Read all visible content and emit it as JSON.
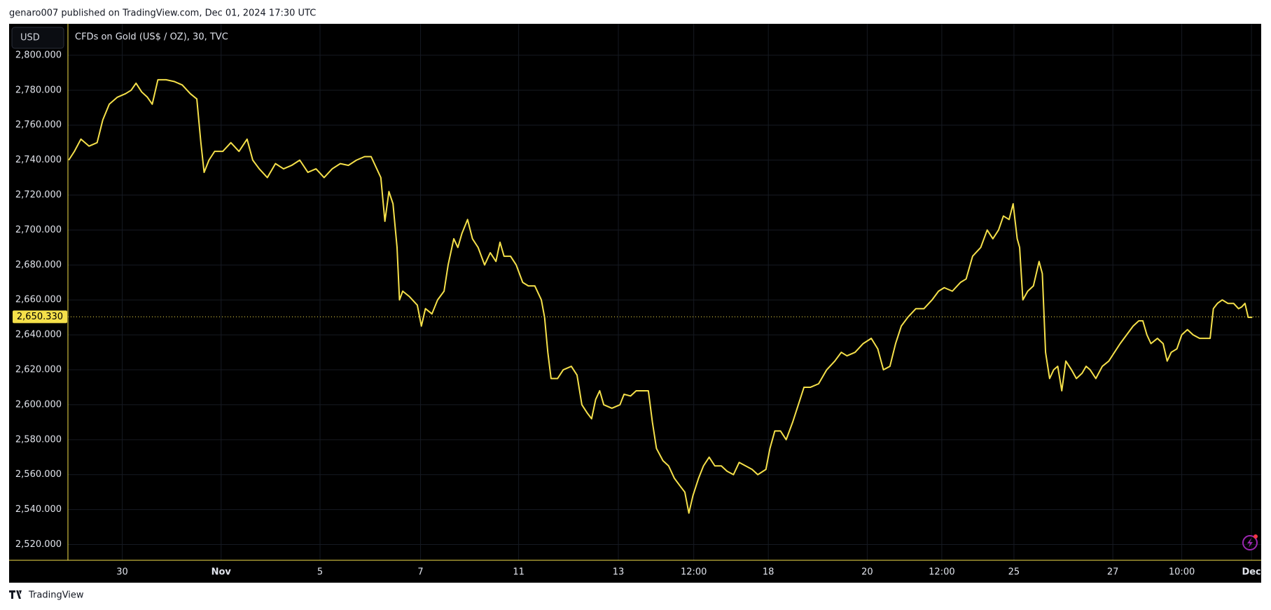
{
  "header": {
    "text": "genaro007 published on TradingView.com, Dec 01, 2024 17:30 UTC"
  },
  "toolbar": {
    "currency": "USD"
  },
  "footer": {
    "brand": "TradingView"
  },
  "chart_data": {
    "type": "line",
    "title": "CFDs on Gold (US$ / OZ), 30, TVC",
    "x": [
      1,
      8,
      16,
      26,
      36,
      43,
      51,
      61,
      71,
      78,
      84,
      91,
      98,
      104,
      111,
      121,
      131,
      141,
      151,
      159,
      164,
      168,
      174,
      181,
      191,
      201,
      211,
      221,
      228,
      236,
      246,
      256,
      266,
      276,
      286,
      296,
      306,
      316,
      326,
      336,
      346,
      356,
      366,
      374,
      381,
      386,
      391,
      396,
      401,
      406,
      409,
      413,
      421,
      431,
      436,
      441,
      449,
      456,
      464,
      469,
      476,
      481,
      486,
      493,
      499,
      506,
      514,
      521,
      528,
      533,
      538,
      546,
      553,
      561,
      568,
      576,
      584,
      588,
      592,
      596,
      604,
      611,
      621,
      628,
      634,
      641,
      646,
      651,
      656,
      661,
      671,
      681,
      686,
      694,
      701,
      708,
      716,
      721,
      726,
      734,
      741,
      748,
      756,
      761,
      766,
      771,
      778,
      784,
      791,
      798,
      806,
      813,
      821,
      828,
      836,
      844,
      851,
      861,
      866,
      872,
      879,
      886,
      894,
      901,
      908,
      916,
      926,
      936,
      946,
      954,
      961,
      971,
      981,
      991,
      999,
      1006,
      1014,
      1021,
      1028,
      1036,
      1046,
      1056,
      1066,
      1074,
      1081,
      1091,
      1101,
      1108,
      1116,
      1126,
      1134,
      1141,
      1148,
      1154,
      1161,
      1166,
      1171,
      1174,
      1178,
      1184,
      1191,
      1198,
      1202,
      1206,
      1211,
      1216,
      1221,
      1226,
      1231,
      1238,
      1244,
      1251,
      1256,
      1261,
      1268,
      1276,
      1284,
      1291,
      1298,
      1306,
      1314,
      1321,
      1326,
      1331,
      1336,
      1344,
      1351,
      1356,
      1361,
      1368,
      1374,
      1381,
      1388,
      1396,
      1403,
      1409,
      1413,
      1418,
      1424,
      1431,
      1438,
      1444,
      1448,
      1452,
      1456,
      1461
    ],
    "series": [
      {
        "name": "CFDs on Gold (US$ / OZ)",
        "color": "#f5e04a",
        "values": [
          2740,
          2745,
          2752,
          2748,
          2750,
          2763,
          2772,
          2776,
          2778,
          2780,
          2784,
          2779,
          2776,
          2772,
          2786,
          2786,
          2785,
          2783,
          2778,
          2775,
          2750,
          2733,
          2740,
          2745,
          2745,
          2750,
          2745,
          2752,
          2740,
          2735,
          2730,
          2738,
          2735,
          2737,
          2740,
          2733,
          2735,
          2730,
          2735,
          2738,
          2737,
          2740,
          2742,
          2742,
          2735,
          2730,
          2705,
          2722,
          2715,
          2690,
          2660,
          2665,
          2662,
          2657,
          2645,
          2655,
          2652,
          2660,
          2665,
          2680,
          2695,
          2690,
          2698,
          2706,
          2695,
          2690,
          2680,
          2687,
          2682,
          2693,
          2685,
          2685,
          2680,
          2670,
          2668,
          2668,
          2660,
          2650,
          2630,
          2615,
          2615,
          2620,
          2622,
          2617,
          2600,
          2595,
          2592,
          2603,
          2608,
          2600,
          2598,
          2600,
          2606,
          2605,
          2608,
          2608,
          2608,
          2590,
          2575,
          2568,
          2565,
          2558,
          2553,
          2550,
          2538,
          2548,
          2558,
          2565,
          2570,
          2565,
          2565,
          2562,
          2560,
          2567,
          2565,
          2563,
          2560,
          2563,
          2575,
          2585,
          2585,
          2580,
          2590,
          2600,
          2610,
          2610,
          2612,
          2620,
          2625,
          2630,
          2628,
          2630,
          2635,
          2638,
          2632,
          2620,
          2622,
          2635,
          2645,
          2650,
          2655,
          2655,
          2660,
          2665,
          2667,
          2665,
          2670,
          2672,
          2685,
          2690,
          2700,
          2695,
          2700,
          2708,
          2706,
          2715,
          2695,
          2690,
          2660,
          2665,
          2668,
          2682,
          2675,
          2630,
          2615,
          2620,
          2622,
          2608,
          2625,
          2620,
          2615,
          2618,
          2622,
          2620,
          2615,
          2622,
          2625,
          2630,
          2635,
          2640,
          2645,
          2648,
          2648,
          2640,
          2635,
          2638,
          2635,
          2625,
          2630,
          2632,
          2640,
          2643,
          2640,
          2638,
          2638,
          2638,
          2655,
          2658,
          2660,
          2658,
          2658,
          2655,
          2656,
          2658,
          2650,
          2650
        ]
      }
    ],
    "xlim": [
      0,
      1472
    ],
    "xticks": [
      {
        "value": 67,
        "label": "30"
      },
      {
        "value": 189,
        "label": "Nov"
      },
      {
        "value": 311,
        "label": "5"
      },
      {
        "value": 435,
        "label": "7"
      },
      {
        "value": 556,
        "label": "11"
      },
      {
        "value": 679,
        "label": "13"
      },
      {
        "value": 772,
        "label": "12:00"
      },
      {
        "value": 864,
        "label": "18"
      },
      {
        "value": 986,
        "label": "20"
      },
      {
        "value": 1078,
        "label": "12:00"
      },
      {
        "value": 1167,
        "label": "25"
      },
      {
        "value": 1289,
        "label": "27"
      },
      {
        "value": 1374,
        "label": "10:00"
      },
      {
        "value": 1460,
        "label": "Dec"
      }
    ],
    "ylim": [
      2511,
      2818
    ],
    "yticks": [
      {
        "value": 2520,
        "label": "2,520.000"
      },
      {
        "value": 2540,
        "label": "2,540.000"
      },
      {
        "value": 2560,
        "label": "2,560.000"
      },
      {
        "value": 2580,
        "label": "2,580.000"
      },
      {
        "value": 2600,
        "label": "2,600.000"
      },
      {
        "value": 2620,
        "label": "2,620.000"
      },
      {
        "value": 2640,
        "label": "2,640.000"
      },
      {
        "value": 2660,
        "label": "2,660.000"
      },
      {
        "value": 2680,
        "label": "2,680.000"
      },
      {
        "value": 2700,
        "label": "2,700.000"
      },
      {
        "value": 2720,
        "label": "2,720.000"
      },
      {
        "value": 2740,
        "label": "2,740.000"
      },
      {
        "value": 2760,
        "label": "2,760.000"
      },
      {
        "value": 2780,
        "label": "2,780.000"
      },
      {
        "value": 2800,
        "label": "2,800.000"
      }
    ],
    "last_price": {
      "value": 2650.33,
      "label": "2,650.330"
    },
    "grid": true
  }
}
